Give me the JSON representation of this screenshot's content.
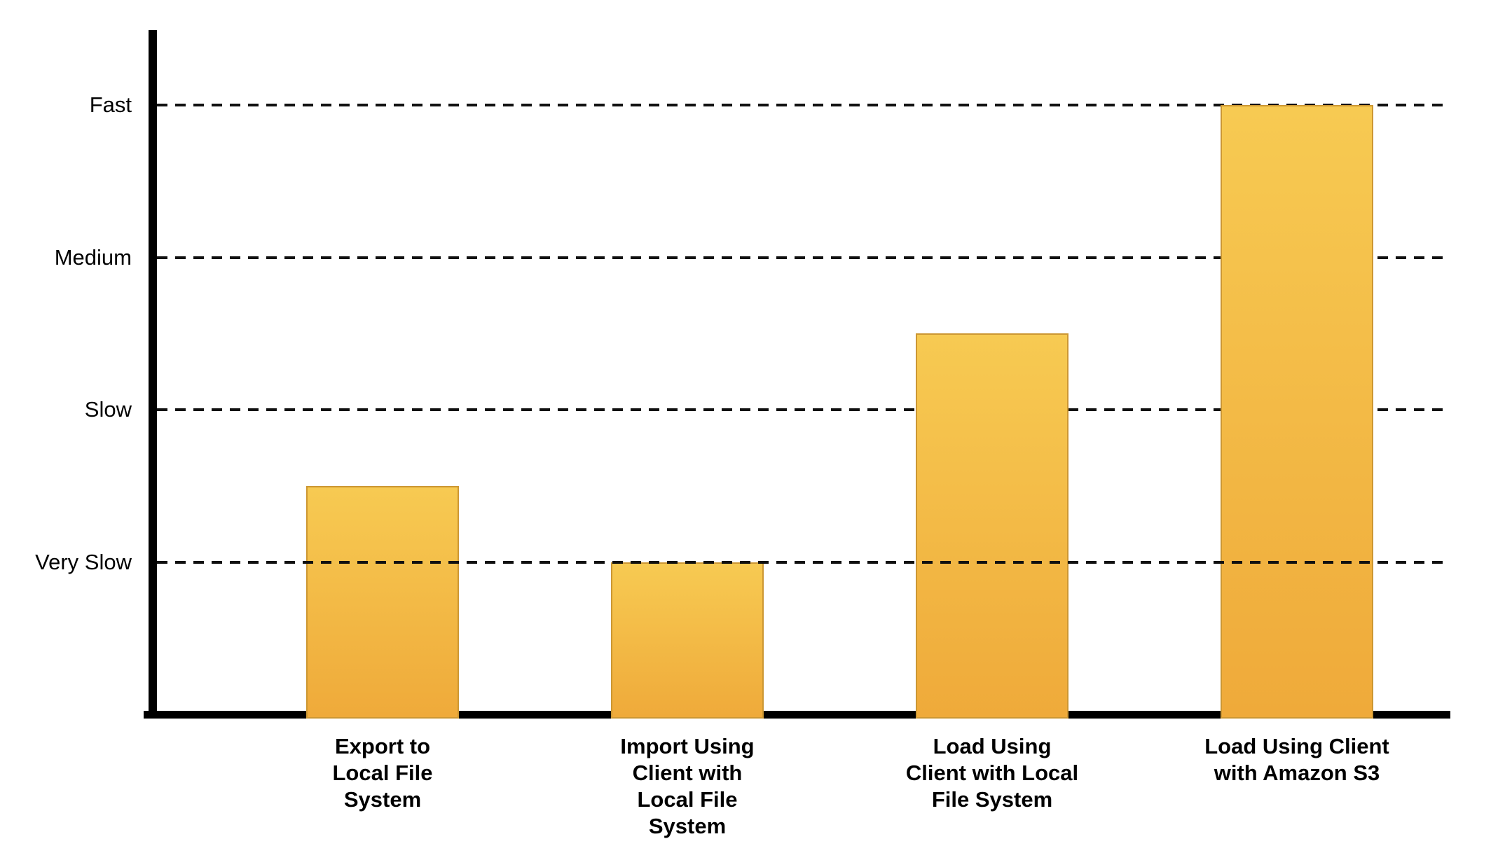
{
  "chart_data": {
    "type": "bar",
    "title": "",
    "xlabel": "",
    "ylabel": "",
    "legend": "none",
    "grid": "horizontal-dashed",
    "value_scale": "qualitative speed scale: 0 = baseline, 1 = Very Slow, 2 = Slow, 3 = Medium, 4 = Fast",
    "ylim": [
      0,
      4.5
    ],
    "y_ticks": [
      {
        "label": "Fast",
        "value": 4,
        "drawn_above_bars": false
      },
      {
        "label": "Medium",
        "value": 3,
        "drawn_above_bars": false
      },
      {
        "label": "Slow",
        "value": 2,
        "drawn_above_bars": false
      },
      {
        "label": "Very Slow",
        "value": 1,
        "drawn_above_bars": true
      }
    ],
    "categories": [
      {
        "label": "Export to Local File System",
        "label_lines": [
          "Export to",
          "Local File",
          "System"
        ],
        "value": 1.5
      },
      {
        "label": "Import Using Client with Local File System",
        "label_lines": [
          "Import Using",
          "Client with",
          "Local File",
          "System"
        ],
        "value": 1.0
      },
      {
        "label": "Load Using Client with Local File System",
        "label_lines": [
          "Load Using",
          "Client with Local",
          "File System"
        ],
        "value": 2.5
      },
      {
        "label": "Load Using Client with Amazon S3",
        "label_lines": [
          "Load Using Client",
          "with Amazon S3"
        ],
        "value": 4.0
      }
    ],
    "colors": {
      "bar_gradient_top": "#F7CA52",
      "bar_gradient_bottom": "#EFAA3A",
      "bar_border": "#CC9733",
      "gridline": "#111111",
      "axis": "#000000",
      "text": "#000000",
      "background": "#FFFFFF"
    }
  }
}
